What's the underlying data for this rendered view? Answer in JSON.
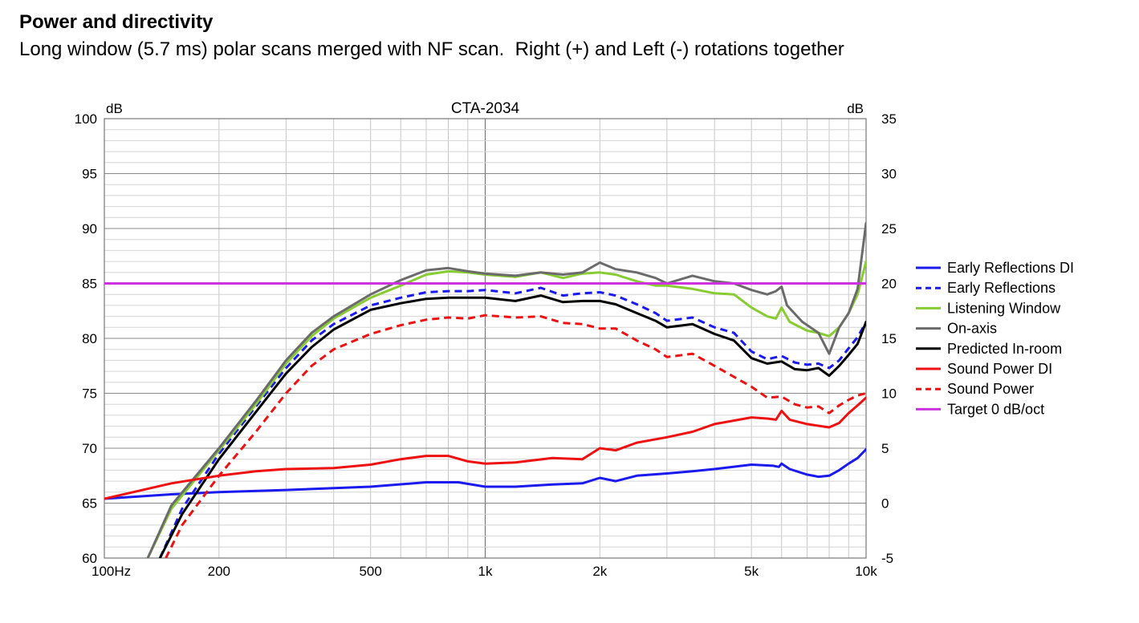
{
  "heading": "Power and directivity",
  "subheading": "Long window (5.7 ms) polar scans merged with NF scan.  Right (+) and Left (-) rotations together",
  "chart_data": {
    "type": "line",
    "title": "CTA-2034",
    "left_unit": "dB",
    "right_unit": "dB",
    "x_scale": "log",
    "xlim": [
      100,
      10000
    ],
    "ylim_left": [
      60,
      100
    ],
    "ylim_right": [
      -5,
      35
    ],
    "grid": true,
    "legend_position": "right",
    "x_ticks": [
      {
        "value": 100,
        "label": "100Hz"
      },
      {
        "value": 200,
        "label": "200"
      },
      {
        "value": 500,
        "label": "500"
      },
      {
        "value": 1000,
        "label": "1k"
      },
      {
        "value": 2000,
        "label": "2k"
      },
      {
        "value": 5000,
        "label": "5k"
      },
      {
        "value": 10000,
        "label": "10k"
      }
    ],
    "y_ticks_left": [
      "60",
      "65",
      "70",
      "75",
      "80",
      "85",
      "90",
      "95",
      "100"
    ],
    "y_ticks_right": [
      "-5",
      "0",
      "5",
      "10",
      "15",
      "20",
      "25",
      "30",
      "35"
    ],
    "series": [
      {
        "name": "Early Reflections DI",
        "axis": "right",
        "color": "#1a1aee",
        "dash": false,
        "x": [
          100,
          150,
          200,
          300,
          500,
          700,
          850,
          1000,
          1200,
          1500,
          1800,
          2000,
          2200,
          2500,
          3000,
          3500,
          4000,
          5000,
          5700,
          5900,
          6000,
          6300,
          7000,
          7500,
          8000,
          8500,
          9000,
          9500,
          10000
        ],
        "y": [
          0.4,
          0.8,
          1.0,
          1.2,
          1.5,
          1.9,
          1.9,
          1.5,
          1.5,
          1.7,
          1.8,
          2.3,
          2.0,
          2.5,
          2.7,
          2.9,
          3.1,
          3.5,
          3.4,
          3.3,
          3.6,
          3.1,
          2.6,
          2.4,
          2.5,
          3.0,
          3.6,
          4.1,
          4.9
        ]
      },
      {
        "name": "Early Reflections",
        "axis": "left",
        "color": "#1a1aee",
        "dash": true,
        "x": [
          140,
          160,
          200,
          250,
          300,
          350,
          400,
          500,
          600,
          700,
          800,
          900,
          1000,
          1200,
          1400,
          1600,
          1800,
          2000,
          2200,
          2500,
          2800,
          3000,
          3500,
          4000,
          4500,
          5000,
          5500,
          6000,
          6500,
          7000,
          7500,
          8000,
          8500,
          9000,
          9500,
          10000
        ],
        "y": [
          60,
          64.5,
          69.5,
          73.8,
          77.3,
          79.8,
          81.3,
          83.0,
          83.7,
          84.2,
          84.3,
          84.3,
          84.4,
          84.1,
          84.6,
          83.9,
          84.1,
          84.2,
          83.9,
          83.1,
          82.3,
          81.6,
          81.9,
          81.0,
          80.5,
          78.8,
          78.1,
          78.4,
          77.8,
          77.6,
          77.7,
          77.3,
          78.0,
          79.1,
          80.1,
          81.5
        ]
      },
      {
        "name": "Listening Window",
        "axis": "left",
        "color": "#88cc33",
        "dash": false,
        "x": [
          130,
          150,
          200,
          250,
          300,
          350,
          400,
          500,
          600,
          700,
          800,
          900,
          1000,
          1200,
          1400,
          1600,
          1800,
          2000,
          2200,
          2500,
          2800,
          3000,
          3500,
          4000,
          4500,
          5000,
          5500,
          5800,
          6000,
          6300,
          7000,
          7500,
          8000,
          8500,
          9000,
          9500,
          10000
        ],
        "y": [
          60,
          64.5,
          69.8,
          74.0,
          77.7,
          80.2,
          81.8,
          83.7,
          84.8,
          85.8,
          86.1,
          86.0,
          85.8,
          85.6,
          86.0,
          85.5,
          85.9,
          86.0,
          85.8,
          85.2,
          84.8,
          84.8,
          84.5,
          84.1,
          84.0,
          82.8,
          82.0,
          81.8,
          82.8,
          81.5,
          80.7,
          80.5,
          80.2,
          81.0,
          82.3,
          84.0,
          87.0
        ]
      },
      {
        "name": "On-axis",
        "axis": "left",
        "color": "#6b6b6b",
        "dash": false,
        "x": [
          130,
          150,
          200,
          250,
          300,
          350,
          400,
          500,
          600,
          700,
          800,
          900,
          1000,
          1200,
          1400,
          1600,
          1800,
          2000,
          2200,
          2500,
          2800,
          3000,
          3500,
          4000,
          4500,
          5000,
          5500,
          5800,
          6000,
          6200,
          6800,
          7500,
          8000,
          8500,
          9000,
          9500,
          10000
        ],
        "y": [
          60,
          64.8,
          70.0,
          74.3,
          78.0,
          80.5,
          82.0,
          84.0,
          85.3,
          86.2,
          86.4,
          86.1,
          85.9,
          85.7,
          86.0,
          85.8,
          86.0,
          86.9,
          86.3,
          86.0,
          85.5,
          85.0,
          85.7,
          85.2,
          85.0,
          84.4,
          84.0,
          84.3,
          84.7,
          83.0,
          81.5,
          80.5,
          78.6,
          81.0,
          82.3,
          84.5,
          90.5
        ]
      },
      {
        "name": "Predicted In-room",
        "axis": "left",
        "color": "#000000",
        "dash": false,
        "x": [
          140,
          160,
          200,
          250,
          300,
          350,
          400,
          500,
          600,
          700,
          800,
          900,
          1000,
          1200,
          1400,
          1600,
          1800,
          2000,
          2200,
          2500,
          2800,
          3000,
          3500,
          4000,
          4500,
          5000,
          5500,
          6000,
          6500,
          7000,
          7500,
          8000,
          8500,
          9000,
          9500,
          10000
        ],
        "y": [
          60,
          64.0,
          69.0,
          73.3,
          76.8,
          79.2,
          80.8,
          82.6,
          83.2,
          83.6,
          83.7,
          83.7,
          83.7,
          83.4,
          83.9,
          83.3,
          83.4,
          83.4,
          83.1,
          82.3,
          81.6,
          81.0,
          81.3,
          80.4,
          79.8,
          78.2,
          77.7,
          77.9,
          77.2,
          77.1,
          77.3,
          76.6,
          77.5,
          78.5,
          79.5,
          81.5
        ]
      },
      {
        "name": "Sound Power DI",
        "axis": "right",
        "color": "#ee1111",
        "dash": false,
        "x": [
          100,
          150,
          200,
          250,
          300,
          400,
          500,
          600,
          700,
          800,
          900,
          1000,
          1200,
          1500,
          1800,
          2000,
          2200,
          2500,
          3000,
          3500,
          4000,
          5000,
          5500,
          5800,
          6000,
          6300,
          7000,
          8000,
          8500,
          9000,
          9500,
          10000
        ],
        "y": [
          0.4,
          1.8,
          2.5,
          2.9,
          3.1,
          3.2,
          3.5,
          4.0,
          4.3,
          4.3,
          3.8,
          3.6,
          3.7,
          4.1,
          4.0,
          5.0,
          4.8,
          5.5,
          6.0,
          6.5,
          7.2,
          7.8,
          7.7,
          7.6,
          8.4,
          7.6,
          7.2,
          6.9,
          7.3,
          8.2,
          8.9,
          9.6
        ]
      },
      {
        "name": "Sound Power",
        "axis": "left",
        "color": "#ee1111",
        "dash": true,
        "x": [
          145,
          160,
          200,
          250,
          300,
          350,
          400,
          500,
          600,
          700,
          800,
          900,
          1000,
          1200,
          1400,
          1600,
          1800,
          2000,
          2200,
          2500,
          2800,
          3000,
          3500,
          4000,
          4500,
          5000,
          5500,
          6000,
          6500,
          7000,
          7500,
          8000,
          8500,
          9000,
          9500,
          10000
        ],
        "y": [
          60,
          63.0,
          67.5,
          71.5,
          75.0,
          77.5,
          79.0,
          80.4,
          81.2,
          81.7,
          81.9,
          81.8,
          82.1,
          81.9,
          82.0,
          81.4,
          81.3,
          80.9,
          80.9,
          79.8,
          79.0,
          78.3,
          78.6,
          77.5,
          76.5,
          75.6,
          74.6,
          74.7,
          74.0,
          73.7,
          73.8,
          73.2,
          73.9,
          74.4,
          74.8,
          75.0
        ]
      },
      {
        "name": "Target 0 dB/oct",
        "axis": "left",
        "color": "#cc33dd",
        "dash": false,
        "x": [
          100,
          10000
        ],
        "y": [
          85.0,
          85.0
        ]
      }
    ]
  }
}
